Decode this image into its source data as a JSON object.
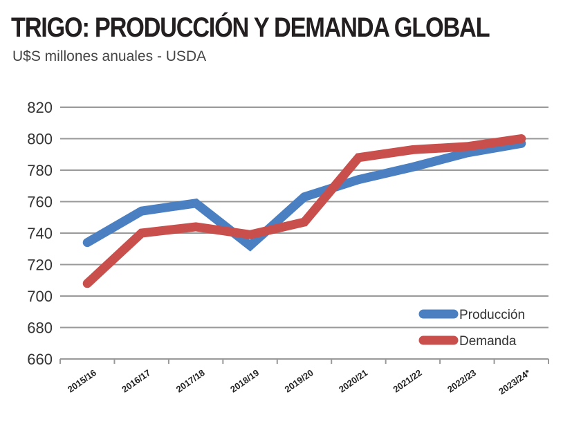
{
  "chart_data": {
    "type": "line",
    "title": "TRIGO: PRODUCCIÓN Y DEMANDA GLOBAL",
    "subtitle": "U$S millones anuales - USDA",
    "xlabel": "",
    "ylabel": "",
    "ylim": [
      660,
      820
    ],
    "yticks": [
      820,
      800,
      780,
      760,
      740,
      720,
      700,
      680,
      660
    ],
    "grid": true,
    "legend_position": "bottom-right",
    "categories": [
      "2015/16",
      "2016/17",
      "2017/18",
      "2018/19",
      "2019/20",
      "2020/21",
      "2021/22",
      "2022/23",
      "2023/24*"
    ],
    "series": [
      {
        "name": "Producción",
        "color": "#4a80c2",
        "values": [
          734,
          754,
          759,
          732,
          763,
          774,
          782,
          791,
          797
        ]
      },
      {
        "name": "Demanda",
        "color": "#c94f4c",
        "values": [
          708,
          740,
          744,
          739,
          747,
          788,
          793,
          795,
          800
        ]
      }
    ]
  }
}
